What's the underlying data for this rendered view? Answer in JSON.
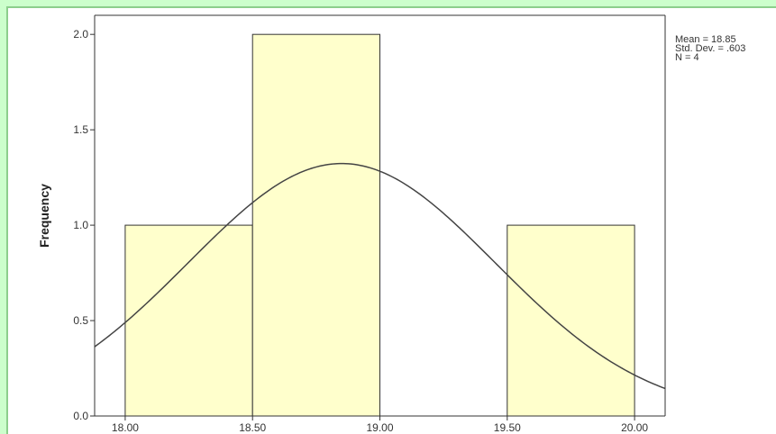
{
  "chart_data": {
    "type": "bar",
    "subtype": "histogram",
    "bins": [
      {
        "start": 18.0,
        "end": 18.5,
        "value": 1
      },
      {
        "start": 18.5,
        "end": 19.0,
        "value": 2
      },
      {
        "start": 19.0,
        "end": 19.5,
        "value": 0
      },
      {
        "start": 19.5,
        "end": 20.0,
        "value": 1
      }
    ],
    "x_ticks": [
      "18.00",
      "18.50",
      "19.00",
      "19.50",
      "20.00"
    ],
    "x_tick_values": [
      18.0,
      18.5,
      19.0,
      19.5,
      20.0
    ],
    "y_ticks": [
      "0.0",
      "0.5",
      "1.0",
      "1.5",
      "2.0"
    ],
    "y_tick_values": [
      0,
      0.5,
      1.0,
      1.5,
      2.0
    ],
    "xlim": [
      17.88,
      20.12
    ],
    "ylim": [
      0,
      2.1
    ],
    "ylabel": "Frequency",
    "normal_curve": {
      "mean": 18.85,
      "std": 0.603,
      "n": 4,
      "bin_width": 0.5
    },
    "stats_lines": [
      "Mean = 18.85",
      "Std. Dev. = .603",
      "N = 4"
    ],
    "colors": {
      "bar_fill": "#ffffcc",
      "bar_stroke": "#333333",
      "curve": "#444444",
      "background": "#ccffcc"
    }
  }
}
